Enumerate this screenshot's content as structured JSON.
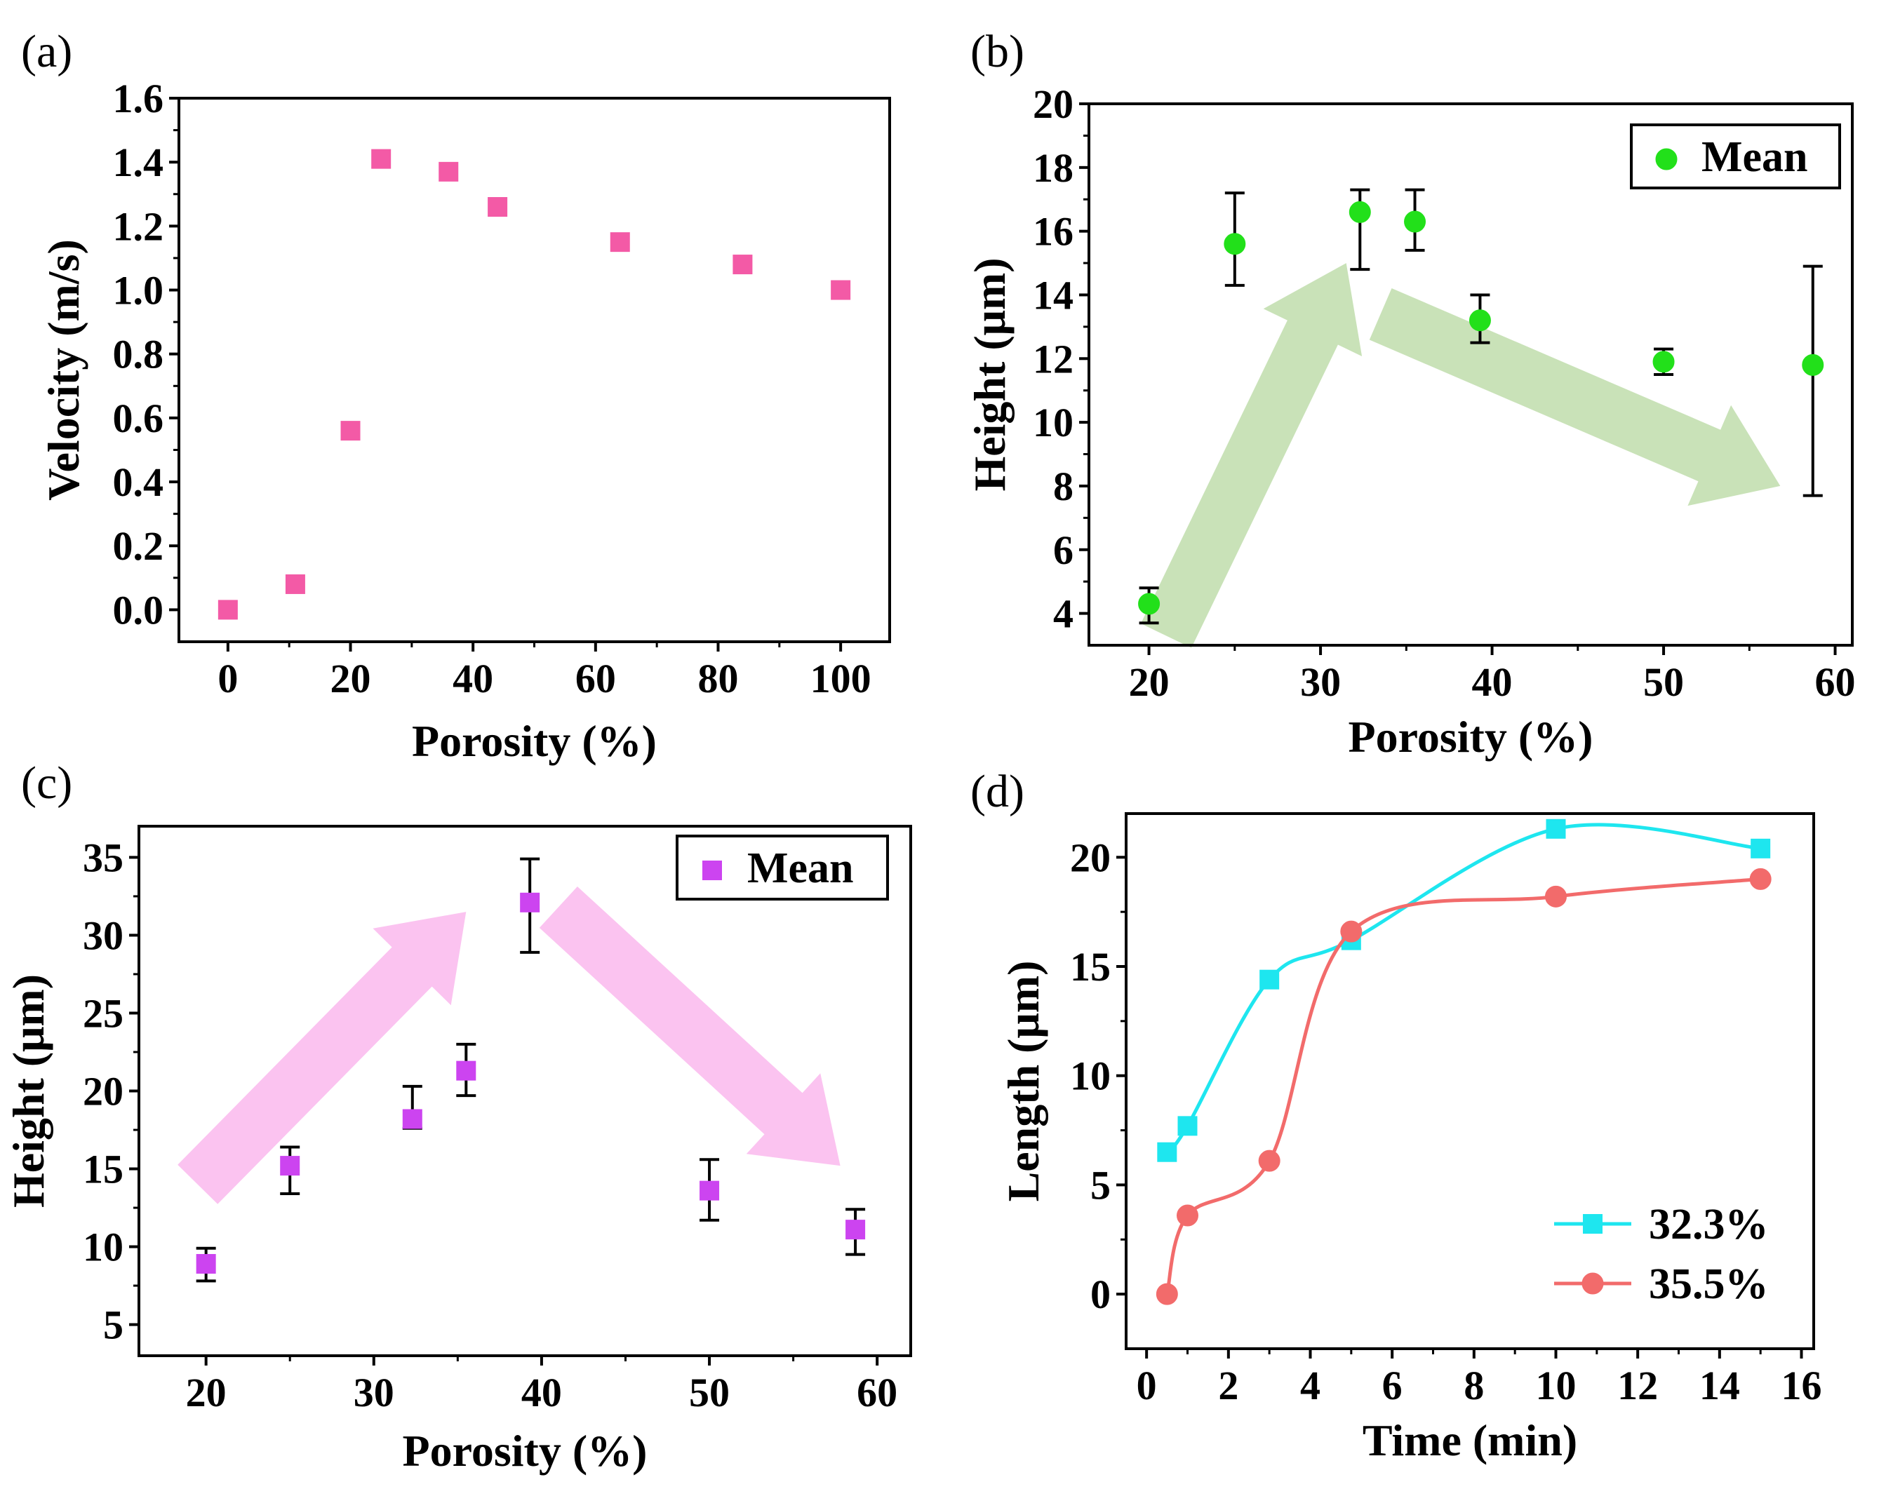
{
  "chart_data": [
    {
      "panel_label": "(a)",
      "type": "scatter",
      "xlabel": "Porosity (%)",
      "ylabel": "Velocity (m/s)",
      "xlim": [
        -8,
        108
      ],
      "ylim": [
        -0.1,
        1.6
      ],
      "xticks": [
        0,
        20,
        40,
        60,
        80,
        100
      ],
      "yticks": [
        0.0,
        0.2,
        0.4,
        0.6,
        0.8,
        1.0,
        1.2,
        1.4,
        1.6
      ],
      "ytick_decimals": 1,
      "marker": "square",
      "color": "#f35aa6",
      "series": [
        {
          "name": "Velocity",
          "x": [
            0,
            11,
            20,
            25,
            36,
            44,
            64,
            84,
            100
          ],
          "y": [
            0.0,
            0.08,
            0.56,
            1.41,
            1.37,
            1.26,
            1.15,
            1.08,
            1.0
          ]
        }
      ]
    },
    {
      "panel_label": "(b)",
      "type": "scatter",
      "xlabel": "Porosity (%)",
      "ylabel": "Height (μm)",
      "xlim": [
        16.5,
        61
      ],
      "ylim": [
        3,
        20
      ],
      "xticks": [
        20,
        30,
        40,
        50,
        60
      ],
      "yticks": [
        4,
        6,
        8,
        10,
        12,
        14,
        16,
        18,
        20
      ],
      "ytick_decimals": 0,
      "marker": "circle",
      "color": "#22e01a",
      "legend": {
        "label": "Mean",
        "position": "top-right"
      },
      "arrow_color": "#c9e2b8",
      "series": [
        {
          "name": "Mean",
          "x": [
            20,
            25,
            32.3,
            35.5,
            39.3,
            50,
            58.7
          ],
          "y": [
            4.3,
            15.6,
            16.6,
            16.3,
            13.2,
            11.9,
            11.8
          ],
          "err_low": [
            3.7,
            14.3,
            14.8,
            15.4,
            12.5,
            11.5,
            7.7
          ],
          "err_high": [
            4.8,
            17.2,
            17.3,
            17.3,
            14.0,
            12.3,
            14.9
          ]
        }
      ]
    },
    {
      "panel_label": "(c)",
      "type": "scatter",
      "xlabel": "Porosity (%)",
      "ylabel": "Height (μm)",
      "xlim": [
        16,
        62
      ],
      "ylim": [
        3,
        37
      ],
      "xticks": [
        20,
        30,
        40,
        50,
        60
      ],
      "yticks": [
        5,
        10,
        15,
        20,
        25,
        30,
        35
      ],
      "ytick_decimals": 0,
      "marker": "square",
      "color": "#cc44f0",
      "legend": {
        "label": "Mean",
        "position": "top-right"
      },
      "arrow_color": "#fbc3f0",
      "series": [
        {
          "name": "Mean",
          "x": [
            20,
            25,
            32.3,
            35.5,
            39.3,
            50,
            58.7
          ],
          "y": [
            8.9,
            15.2,
            18.2,
            21.3,
            32.1,
            13.6,
            11.1
          ],
          "err_low": [
            7.8,
            13.4,
            17.6,
            19.7,
            28.9,
            11.7,
            9.5
          ],
          "err_high": [
            9.9,
            16.4,
            20.3,
            23.0,
            34.9,
            15.6,
            12.4
          ]
        }
      ]
    },
    {
      "panel_label": "(d)",
      "type": "line",
      "xlabel": "Time (min)",
      "ylabel": "Length (μm)",
      "xlim": [
        -0.5,
        16.3
      ],
      "ylim": [
        -2.5,
        22
      ],
      "xticks": [
        0,
        2,
        4,
        6,
        8,
        10,
        12,
        14,
        16
      ],
      "yticks": [
        0,
        5,
        10,
        15,
        20
      ],
      "ytick_decimals": 0,
      "legend": {
        "position": "bottom-right"
      },
      "series": [
        {
          "name": "32.3%",
          "marker": "square",
          "color": "#1ee6ef",
          "x": [
            0.5,
            1,
            3,
            5,
            10,
            15
          ],
          "y": [
            6.5,
            7.7,
            14.4,
            16.2,
            21.3,
            20.4
          ]
        },
        {
          "name": "35.5%",
          "marker": "circle",
          "color": "#f26b6b",
          "x": [
            0.5,
            1,
            3,
            5,
            10,
            15
          ],
          "y": [
            0.0,
            3.6,
            6.1,
            16.6,
            18.2,
            19.0
          ]
        }
      ]
    }
  ]
}
